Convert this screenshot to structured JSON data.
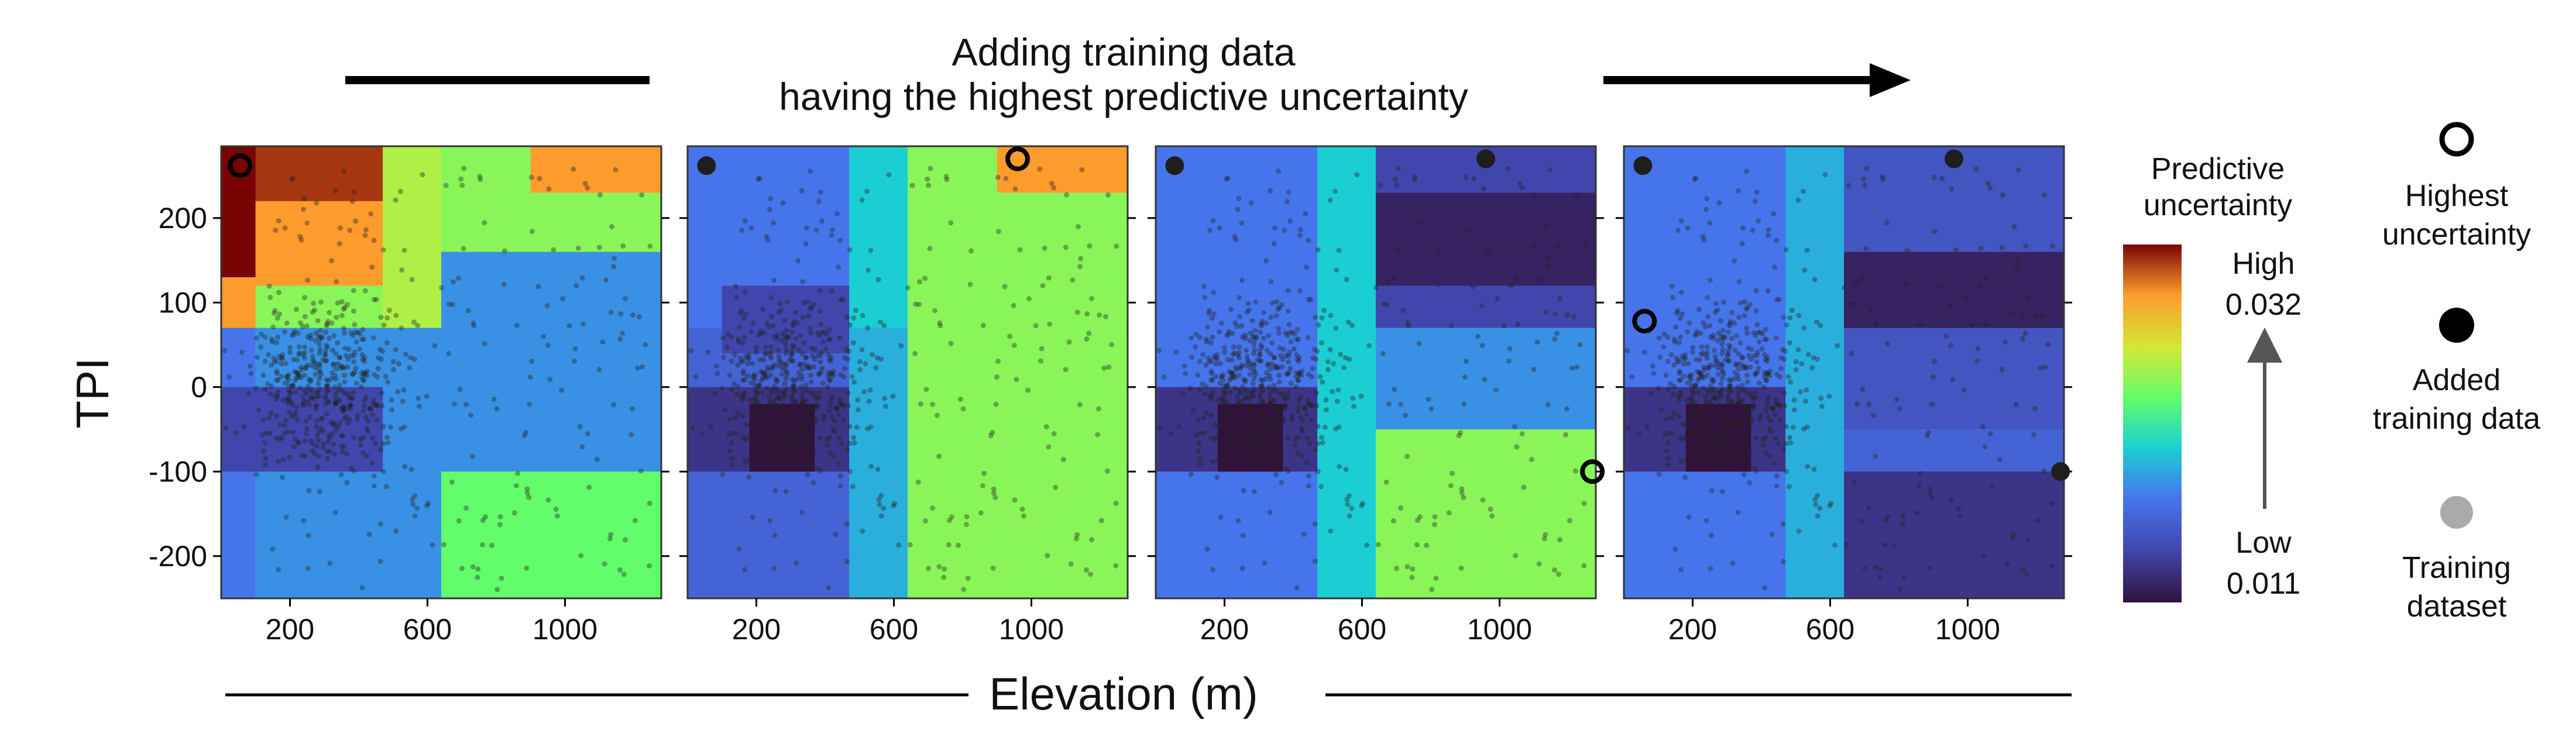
{
  "chart_data": {
    "type": "heatmap",
    "title": [
      "Adding training data",
      "having the highest predictive uncertainty"
    ],
    "xlabel": "Elevation (m)",
    "ylabel": "TPI",
    "xlim": [
      0,
      1280
    ],
    "ylim": [
      -250,
      285
    ],
    "xticks": [
      200,
      600,
      1000
    ],
    "yticks": [
      200,
      100,
      0,
      -100,
      -200
    ],
    "colorbar": {
      "title": [
        "Predictive",
        "uncertainty"
      ],
      "high_label": "High",
      "high_value": "0.032",
      "low_label": "Low",
      "low_value": "0.011",
      "range": [
        0.011,
        0.032
      ],
      "colormap": "turbo"
    },
    "legend": [
      {
        "name": "highest",
        "label": [
          "Highest",
          "uncertainty"
        ],
        "marker": "open-circle"
      },
      {
        "name": "added",
        "label": [
          "Added",
          "training data"
        ],
        "marker": "filled-black-circle"
      },
      {
        "name": "training",
        "label": [
          "Training",
          "dataset"
        ],
        "marker": "filled-gray-circle"
      }
    ],
    "panels": [
      {
        "name": "panel-1",
        "base": 0.024,
        "regions": [
          {
            "x": [
              0,
              470
            ],
            "y": [
              220,
              285
            ],
            "v": 0.031
          },
          {
            "x": [
              0,
              100
            ],
            "y": [
              130,
              285
            ],
            "v": 0.032
          },
          {
            "x": [
              100,
              470
            ],
            "y": [
              120,
              220
            ],
            "v": 0.029
          },
          {
            "x": [
              0,
              100
            ],
            "y": [
              70,
              130
            ],
            "v": 0.029
          },
          {
            "x": [
              470,
              640
            ],
            "y": [
              70,
              285
            ],
            "v": 0.025
          },
          {
            "x": [
              640,
              1280
            ],
            "y": [
              160,
              285
            ],
            "v": 0.024
          },
          {
            "x": [
              900,
              1280
            ],
            "y": [
              230,
              285
            ],
            "v": 0.029
          },
          {
            "x": [
              100,
              640
            ],
            "y": [
              -250,
              70
            ],
            "v": 0.018
          },
          {
            "x": [
              0,
              100
            ],
            "y": [
              -250,
              70
            ],
            "v": 0.017
          },
          {
            "x": [
              0,
              470
            ],
            "y": [
              -100,
              0
            ],
            "v": 0.014
          },
          {
            "x": [
              640,
              1280
            ],
            "y": [
              -100,
              160
            ],
            "v": 0.018
          },
          {
            "x": [
              640,
              1280
            ],
            "y": [
              -250,
              -100
            ],
            "v": 0.023
          }
        ],
        "highest": [
          {
            "x": 55,
            "y": 262
          }
        ],
        "added": []
      },
      {
        "name": "panel-2",
        "base": 0.017,
        "regions": [
          {
            "x": [
              0,
              470
            ],
            "y": [
              70,
              285
            ],
            "v": 0.017
          },
          {
            "x": [
              0,
              470
            ],
            "y": [
              -250,
              70
            ],
            "v": 0.016
          },
          {
            "x": [
              470,
              640
            ],
            "y": [
              70,
              285
            ],
            "v": 0.02
          },
          {
            "x": [
              640,
              1280
            ],
            "y": [
              70,
              285
            ],
            "v": 0.024
          },
          {
            "x": [
              900,
              1280
            ],
            "y": [
              230,
              285
            ],
            "v": 0.029
          },
          {
            "x": [
              100,
              470
            ],
            "y": [
              40,
              120
            ],
            "v": 0.014
          },
          {
            "x": [
              0,
              470
            ],
            "y": [
              -100,
              0
            ],
            "v": 0.013
          },
          {
            "x": [
              180,
              370
            ],
            "y": [
              -100,
              -20
            ],
            "v": 0.011
          },
          {
            "x": [
              470,
              640
            ],
            "y": [
              -250,
              70
            ],
            "v": 0.019
          },
          {
            "x": [
              640,
              1280
            ],
            "y": [
              -250,
              70
            ],
            "v": 0.024
          }
        ],
        "highest": [
          {
            "x": 960,
            "y": 270
          }
        ],
        "added": [
          {
            "x": 55,
            "y": 262
          }
        ]
      },
      {
        "name": "panel-3",
        "base": 0.017,
        "regions": [
          {
            "x": [
              0,
              470
            ],
            "y": [
              -250,
              285
            ],
            "v": 0.017
          },
          {
            "x": [
              470,
              640
            ],
            "y": [
              -250,
              285
            ],
            "v": 0.02
          },
          {
            "x": [
              640,
              1280
            ],
            "y": [
              70,
              285
            ],
            "v": 0.014
          },
          {
            "x": [
              640,
              1280
            ],
            "y": [
              120,
              230
            ],
            "v": 0.012
          },
          {
            "x": [
              640,
              1280
            ],
            "y": [
              -50,
              70
            ],
            "v": 0.018
          },
          {
            "x": [
              640,
              1280
            ],
            "y": [
              -250,
              -50
            ],
            "v": 0.024
          },
          {
            "x": [
              0,
              470
            ],
            "y": [
              -100,
              0
            ],
            "v": 0.013
          },
          {
            "x": [
              180,
              370
            ],
            "y": [
              -100,
              -20
            ],
            "v": 0.011
          }
        ],
        "highest": [
          {
            "x": 1270,
            "y": -100
          }
        ],
        "added": [
          {
            "x": 55,
            "y": 262
          },
          {
            "x": 960,
            "y": 270
          }
        ]
      },
      {
        "name": "panel-4",
        "base": 0.017,
        "regions": [
          {
            "x": [
              0,
              470
            ],
            "y": [
              -250,
              285
            ],
            "v": 0.017
          },
          {
            "x": [
              470,
              640
            ],
            "y": [
              -250,
              285
            ],
            "v": 0.019
          },
          {
            "x": [
              640,
              1280
            ],
            "y": [
              -250,
              285
            ],
            "v": 0.015
          },
          {
            "x": [
              640,
              1280
            ],
            "y": [
              -100,
              -50
            ],
            "v": 0.016
          },
          {
            "x": [
              640,
              1280
            ],
            "y": [
              70,
              160
            ],
            "v": 0.012
          },
          {
            "x": [
              640,
              1280
            ],
            "y": [
              -250,
              -100
            ],
            "v": 0.013
          },
          {
            "x": [
              0,
              470
            ],
            "y": [
              -100,
              0
            ],
            "v": 0.013
          },
          {
            "x": [
              180,
              370
            ],
            "y": [
              -100,
              -20
            ],
            "v": 0.011
          }
        ],
        "highest": [
          {
            "x": 60,
            "y": 78
          }
        ],
        "added": [
          {
            "x": 55,
            "y": 262
          },
          {
            "x": 960,
            "y": 270
          },
          {
            "x": 1270,
            "y": -100
          }
        ]
      }
    ]
  }
}
